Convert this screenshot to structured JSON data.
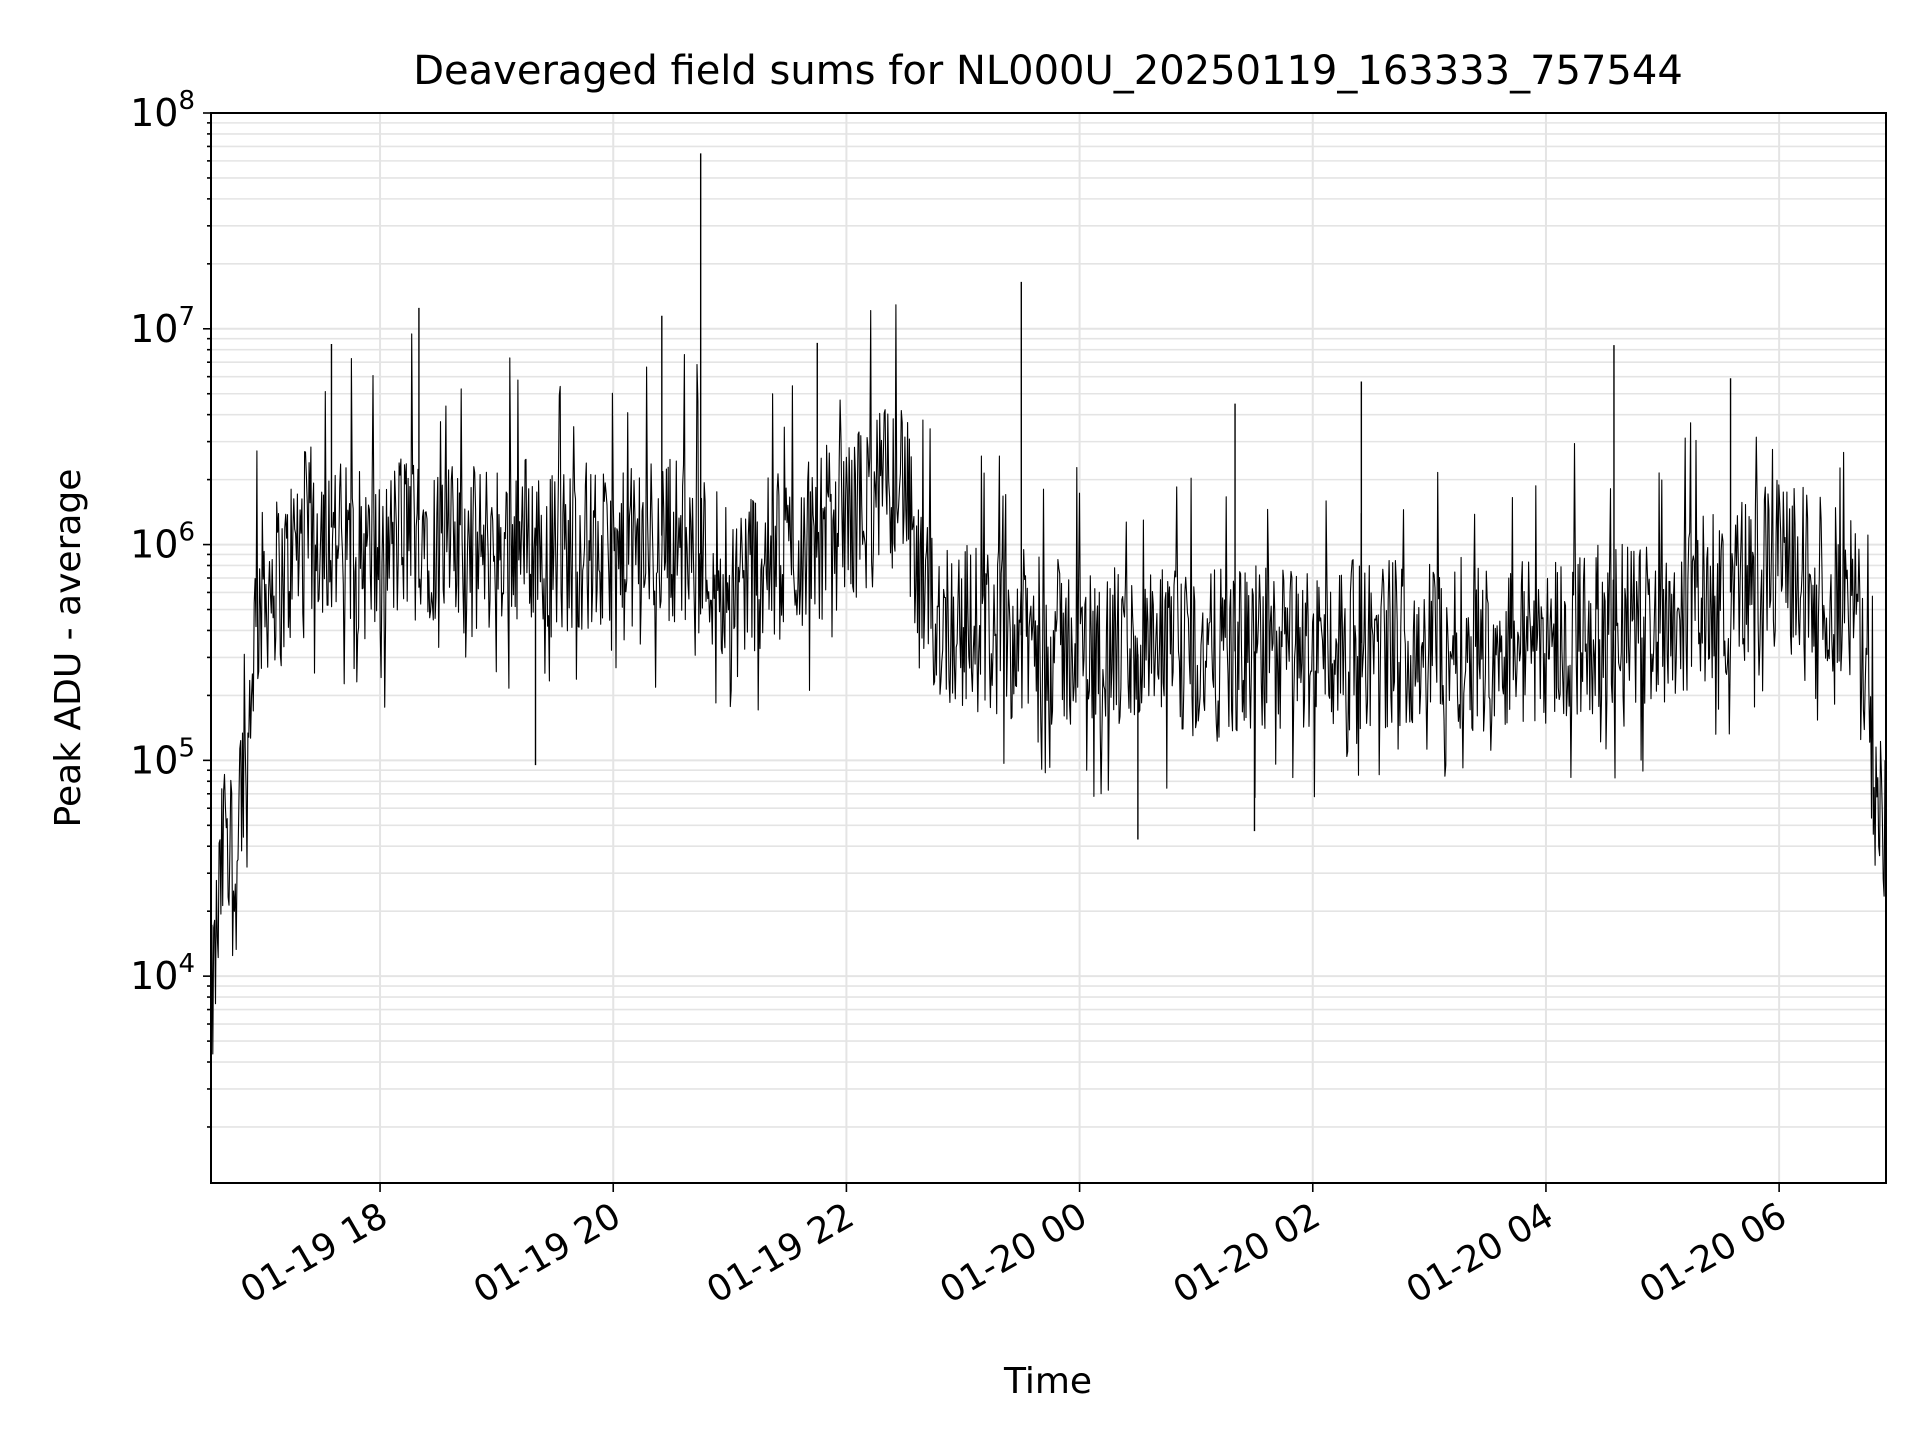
{
  "chart_data": {
    "type": "line",
    "title": "Deaveraged field sums for NL000U_20250119_163333_757544",
    "xlabel": "Time",
    "ylabel": "Peak ADU - average",
    "yscale": "log",
    "ylim": [
      1100,
      100000000
    ],
    "xlim": [
      "2025-01-19 16:33",
      "2025-01-20 06:55"
    ],
    "grid": true,
    "line_color": "#000000",
    "x_ticks": [
      {
        "value": "2025-01-19 18:00",
        "label": "01-19 18"
      },
      {
        "value": "2025-01-19 20:00",
        "label": "01-19 20"
      },
      {
        "value": "2025-01-19 22:00",
        "label": "01-19 22"
      },
      {
        "value": "2025-01-20 00:00",
        "label": "01-20 00"
      },
      {
        "value": "2025-01-20 02:00",
        "label": "01-20 02"
      },
      {
        "value": "2025-01-20 04:00",
        "label": "01-20 04"
      },
      {
        "value": "2025-01-20 06:00",
        "label": "01-20 06"
      }
    ],
    "y_ticks": [
      {
        "value": 10000,
        "base": "10",
        "exp": "4"
      },
      {
        "value": 100000,
        "base": "10",
        "exp": "5"
      },
      {
        "value": 1000000,
        "base": "10",
        "exp": "6"
      },
      {
        "value": 10000000,
        "base": "10",
        "exp": "7"
      },
      {
        "value": 100000000,
        "base": "10",
        "exp": "8"
      }
    ],
    "series": [
      {
        "x": [
          "2025-01-19 16:33",
          "2025-01-19 16:36",
          "2025-01-19 16:39",
          "2025-01-19 16:42",
          "2025-01-19 16:45",
          "2025-01-19 16:48",
          "2025-01-19 16:51",
          "2025-01-19 16:54",
          "2025-01-19 16:57",
          "2025-01-19 17:00",
          "2025-01-19 17:05",
          "2025-01-19 17:10",
          "2025-01-19 17:15",
          "2025-01-19 17:20",
          "2025-01-19 17:30",
          "2025-01-19 17:40",
          "2025-01-19 17:50",
          "2025-01-19 18:00",
          "2025-01-19 18:10",
          "2025-01-19 18:20",
          "2025-01-19 18:30",
          "2025-01-19 18:45",
          "2025-01-19 19:00",
          "2025-01-19 19:15",
          "2025-01-19 19:30",
          "2025-01-19 19:45",
          "2025-01-19 20:00",
          "2025-01-19 20:15",
          "2025-01-19 20:30",
          "2025-01-19 20:45",
          "2025-01-19 21:00",
          "2025-01-19 21:15",
          "2025-01-19 21:30",
          "2025-01-19 21:45",
          "2025-01-19 22:00",
          "2025-01-19 22:15",
          "2025-01-19 22:25",
          "2025-01-19 22:30",
          "2025-01-19 22:35",
          "2025-01-19 22:40",
          "2025-01-19 22:50",
          "2025-01-19 23:00",
          "2025-01-19 23:15",
          "2025-01-19 23:30",
          "2025-01-19 23:45",
          "2025-01-20 00:00",
          "2025-01-20 00:30",
          "2025-01-20 01:00",
          "2025-01-20 01:30",
          "2025-01-20 02:00",
          "2025-01-20 02:30",
          "2025-01-20 03:00",
          "2025-01-20 03:30",
          "2025-01-20 04:00",
          "2025-01-20 04:30",
          "2025-01-20 05:00",
          "2025-01-20 05:30",
          "2025-01-20 05:45",
          "2025-01-20 06:00",
          "2025-01-20 06:15",
          "2025-01-20 06:30",
          "2025-01-20 06:40",
          "2025-01-20 06:45",
          "2025-01-20 06:50",
          "2025-01-20 06:55"
        ],
        "y": [
          6000,
          15000,
          35000,
          80000,
          20000,
          90000,
          60000,
          300000,
          500000,
          600000,
          700000,
          650000,
          900000,
          1100000,
          1200000,
          1000000,
          900000,
          800000,
          1100000,
          1300000,
          1000000,
          900000,
          1000000,
          1100000,
          900000,
          1000000,
          800000,
          1000000,
          1100000,
          900000,
          700000,
          800000,
          900000,
          1100000,
          1300000,
          1600000,
          2000000,
          2200000,
          700000,
          500000,
          450000,
          420000,
          400000,
          380000,
          350000,
          330000,
          310000,
          300000,
          320000,
          330000,
          350000,
          360000,
          340000,
          370000,
          400000,
          450000,
          600000,
          700000,
          800000,
          750000,
          600000,
          500000,
          300000,
          60000,
          50000
        ]
      }
    ],
    "spikes": [
      {
        "x": "2025-01-19 17:35",
        "y": 8500000
      },
      {
        "x": "2025-01-19 18:20",
        "y": 12500000
      },
      {
        "x": "2025-01-19 20:25",
        "y": 11500000
      },
      {
        "x": "2025-01-19 20:45",
        "y": 65000000
      },
      {
        "x": "2025-01-19 21:45",
        "y": 8600000
      },
      {
        "x": "2025-01-19 23:30",
        "y": 16500000
      },
      {
        "x": "2025-01-20 01:20",
        "y": 4500000
      },
      {
        "x": "2025-01-20 02:25",
        "y": 5700000
      },
      {
        "x": "2025-01-20 04:35",
        "y": 8400000
      },
      {
        "x": "2025-01-20 05:35",
        "y": 5900000
      },
      {
        "x": "2025-01-19 19:20",
        "y": 95000
      },
      {
        "x": "2025-01-20 00:30",
        "y": 43000
      },
      {
        "x": "2025-01-20 01:30",
        "y": 47000
      }
    ]
  }
}
